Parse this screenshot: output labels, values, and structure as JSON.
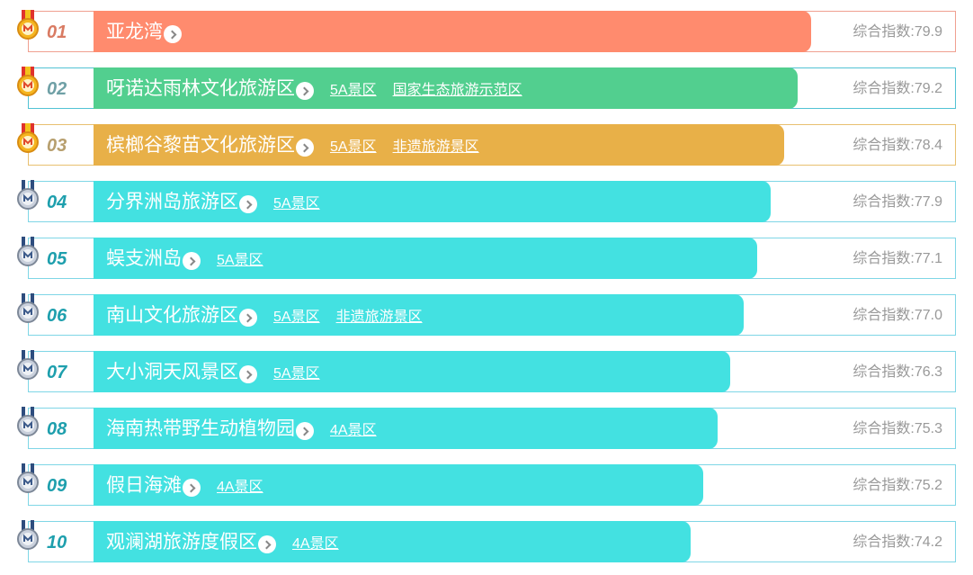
{
  "colors": {
    "gold_bar": "#ff8b6e",
    "gold_border": "#f0a090",
    "green_bar": "#52cf8f",
    "green_border": "#52c2d4",
    "orange_bar": "#e8b048",
    "orange_border": "#e8c070",
    "cyan_bar": "#43e1e1",
    "cyan_border": "#7fd6e6",
    "rank_red": "#d97b63",
    "rank_green": "#6fa0a6",
    "rank_brown": "#b79f6e",
    "rank_teal": "#1e9fad"
  },
  "score_label": "综合指数:",
  "rows": [
    {
      "rank": "01",
      "name": "亚龙湾",
      "tags": [],
      "score": "79.9",
      "fill": 0.773,
      "medal": "gold-medal-icon"
    },
    {
      "rank": "02",
      "name": "呀诺达雨林文化旅游区",
      "tags": [
        "5A景区",
        "国家生态旅游示范区"
      ],
      "score": "79.2",
      "fill": 0.759,
      "medal": "gold-medal-icon"
    },
    {
      "rank": "03",
      "name": "槟榔谷黎苗文化旅游区",
      "tags": [
        "5A景区",
        "非遗旅游景区"
      ],
      "score": "78.4",
      "fill": 0.744,
      "medal": "gold-medal-icon"
    },
    {
      "rank": "04",
      "name": "分界洲岛旅游区",
      "tags": [
        "5A景区"
      ],
      "score": "77.9",
      "fill": 0.73,
      "medal": "silver-medal-icon"
    },
    {
      "rank": "05",
      "name": "蜈支洲岛",
      "tags": [
        "5A景区"
      ],
      "score": "77.1",
      "fill": 0.715,
      "medal": "silver-medal-icon"
    },
    {
      "rank": "06",
      "name": "南山文化旅游区",
      "tags": [
        "5A景区",
        "非遗旅游景区"
      ],
      "score": "77.0",
      "fill": 0.701,
      "medal": "silver-medal-icon"
    },
    {
      "rank": "07",
      "name": "大小洞天风景区",
      "tags": [
        "5A景区"
      ],
      "score": "76.3",
      "fill": 0.686,
      "medal": "silver-medal-icon"
    },
    {
      "rank": "08",
      "name": "海南热带野生动植物园",
      "tags": [
        "4A景区"
      ],
      "score": "75.3",
      "fill": 0.672,
      "medal": "silver-medal-icon"
    },
    {
      "rank": "09",
      "name": "假日海滩",
      "tags": [
        "4A景区"
      ],
      "score": "75.2",
      "fill": 0.657,
      "medal": "silver-medal-icon"
    },
    {
      "rank": "10",
      "name": "观澜湖旅游度假区",
      "tags": [
        "4A景区"
      ],
      "score": "74.2",
      "fill": 0.643,
      "medal": "silver-medal-icon"
    }
  ]
}
